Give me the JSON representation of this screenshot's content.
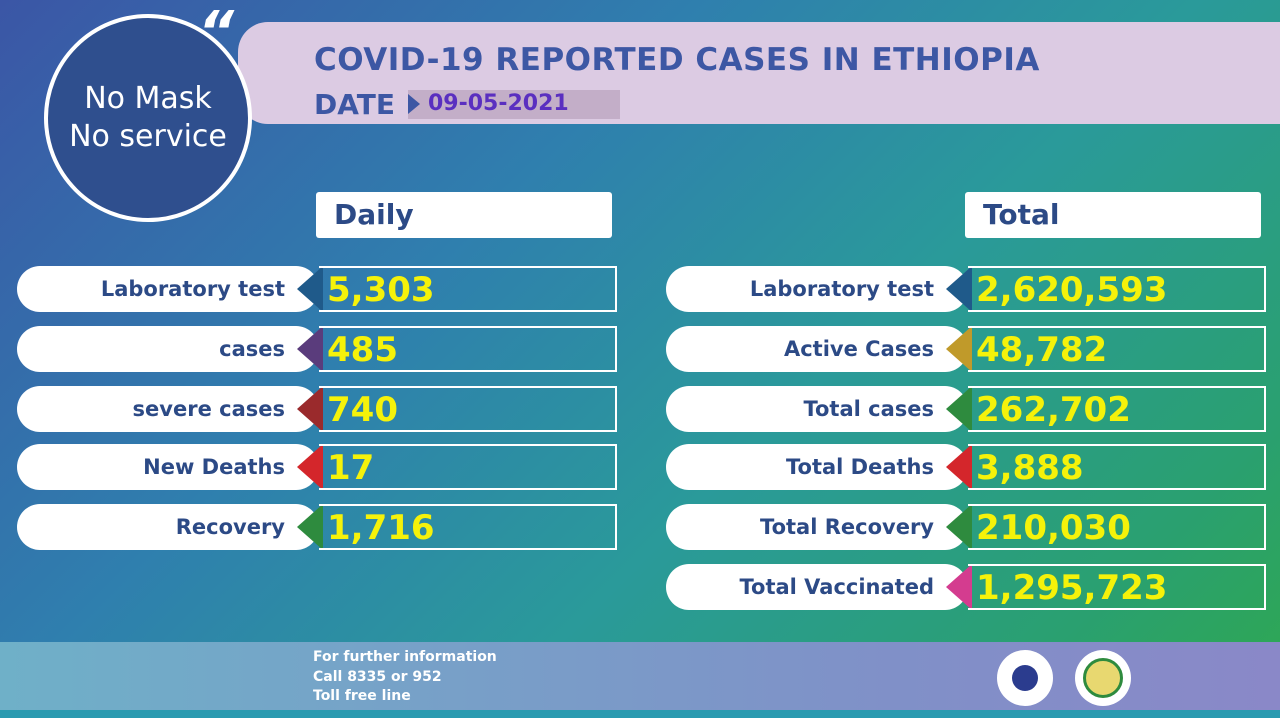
{
  "badge": {
    "line1": "No Mask",
    "line2": "No service"
  },
  "header": {
    "title": "COVID-19 REPORTED CASES IN ETHIOPIA",
    "date_label": "DATE",
    "date": "09-05-2021"
  },
  "daily": {
    "heading": "Daily",
    "rows": [
      {
        "label": "Laboratory test",
        "value": "5,303",
        "color": "#1f5a8a"
      },
      {
        "label": "cases",
        "value": "485",
        "color": "#5a3c7c"
      },
      {
        "label": "severe cases",
        "value": "740",
        "color": "#9a2a2c"
      },
      {
        "label": "New Deaths",
        "value": "17",
        "color": "#d4262b"
      },
      {
        "label": "Recovery",
        "value": "1,716",
        "color": "#2e8b3e"
      }
    ]
  },
  "total": {
    "heading": "Total",
    "rows": [
      {
        "label": "Laboratory test",
        "value": "2,620,593",
        "color": "#1f5a8a"
      },
      {
        "label": "Active Cases",
        "value": "48,782",
        "color": "#c09a2a"
      },
      {
        "label": "Total cases",
        "value": "262,702",
        "color": "#2e8b3e"
      },
      {
        "label": "Total Deaths",
        "value": "3,888",
        "color": "#d4262b"
      },
      {
        "label": "Total Recovery",
        "value": "210,030",
        "color": "#2e8b3e"
      },
      {
        "label": "Total Vaccinated",
        "value": "1,295,723",
        "color": "#d43c8f"
      }
    ]
  },
  "footer": {
    "line1": "For further information",
    "line2": "Call 8335 or 952",
    "line3": "Toll free line"
  }
}
